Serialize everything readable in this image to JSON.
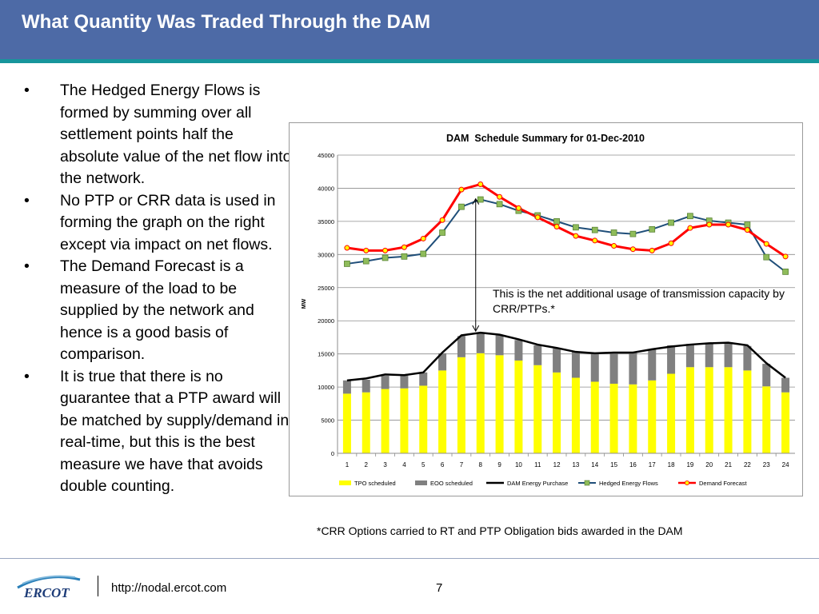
{
  "title": "What Quantity Was Traded Through the DAM",
  "bullets": [
    "The Hedged Energy Flows is formed by summing over all settlement points half the absolute value of the net flow into the network.",
    "No PTP or CRR data is used in forming the graph on the right except via impact on net flows.",
    "The Demand Forecast is a measure of the load to be supplied by the network and hence is a good basis of comparison.",
    "It is true that there is no guarantee that a PTP award will be matched by supply/demand in real-time, but this is the best measure we have that avoids double counting."
  ],
  "bullet_glyph": "•",
  "annotation": "This is the net additional usage of transmission capacity by CRR/PTPs.*",
  "footnote": "*CRR Options carried to RT and PTP Obligation bids awarded in the DAM",
  "footer": {
    "logo_text": "ERCOT",
    "url": "http://nodal.ercot.com",
    "page_number": "7"
  },
  "colors": {
    "title_bar": "#4d6aa6",
    "title_rule": "#17959c",
    "tpo": "#ffff00",
    "eoo": "#808080",
    "dam": "#000000",
    "hedged": "#1f4e79",
    "hedged_marker": "#8fbc5a",
    "demand": "#ff0000",
    "demand_marker": "#ffff00"
  },
  "chart_data": {
    "type": "bar",
    "title": "DAM  Schedule Summary for 01-Dec-2010",
    "ylabel": "MW",
    "xlabel": "",
    "ylim": [
      0,
      45000
    ],
    "yticks": [
      0,
      5000,
      10000,
      15000,
      20000,
      25000,
      30000,
      35000,
      40000,
      45000
    ],
    "grid": true,
    "legend_position": "bottom",
    "categories": [
      "1",
      "2",
      "3",
      "4",
      "5",
      "6",
      "7",
      "8",
      "9",
      "10",
      "11",
      "12",
      "13",
      "14",
      "15",
      "16",
      "17",
      "18",
      "19",
      "20",
      "21",
      "22",
      "23",
      "24"
    ],
    "series": [
      {
        "name": "TPO scheduled",
        "kind": "stacked-bar",
        "values": [
          9000,
          9200,
          9700,
          9800,
          10200,
          12500,
          14500,
          15100,
          14800,
          14000,
          13300,
          12200,
          11400,
          10800,
          10500,
          10400,
          11000,
          12000,
          13000,
          13000,
          13000,
          12500,
          10100,
          9200
        ]
      },
      {
        "name": "EOO scheduled",
        "kind": "stacked-bar",
        "values": [
          2000,
          1900,
          2000,
          1900,
          2000,
          2600,
          3200,
          3000,
          3000,
          3100,
          3000,
          3600,
          3900,
          4300,
          4700,
          4800,
          4700,
          4300,
          3500,
          3600,
          3700,
          3700,
          3400,
          2200
        ]
      },
      {
        "name": "DAM Energy Purchase",
        "kind": "line",
        "values": [
          11000,
          11300,
          11900,
          11800,
          12200,
          15200,
          17800,
          18200,
          17900,
          17200,
          16400,
          15900,
          15300,
          15100,
          15200,
          15200,
          15700,
          16100,
          16400,
          16600,
          16700,
          16300,
          13600,
          11400
        ]
      },
      {
        "name": "Hedged Energy Flows",
        "kind": "line",
        "values": [
          28600,
          29000,
          29500,
          29700,
          30100,
          33300,
          37200,
          38300,
          37600,
          36600,
          35900,
          35000,
          34100,
          33700,
          33300,
          33100,
          33800,
          34800,
          35800,
          35100,
          34800,
          34500,
          29600,
          27400
        ]
      },
      {
        "name": "Demand Forecast",
        "kind": "line",
        "values": [
          31000,
          30600,
          30600,
          31100,
          32400,
          35200,
          39800,
          40600,
          38700,
          37000,
          35600,
          34200,
          32800,
          32100,
          31300,
          30800,
          30600,
          31700,
          34000,
          34500,
          34500,
          33700,
          31600,
          29700
        ]
      }
    ]
  }
}
